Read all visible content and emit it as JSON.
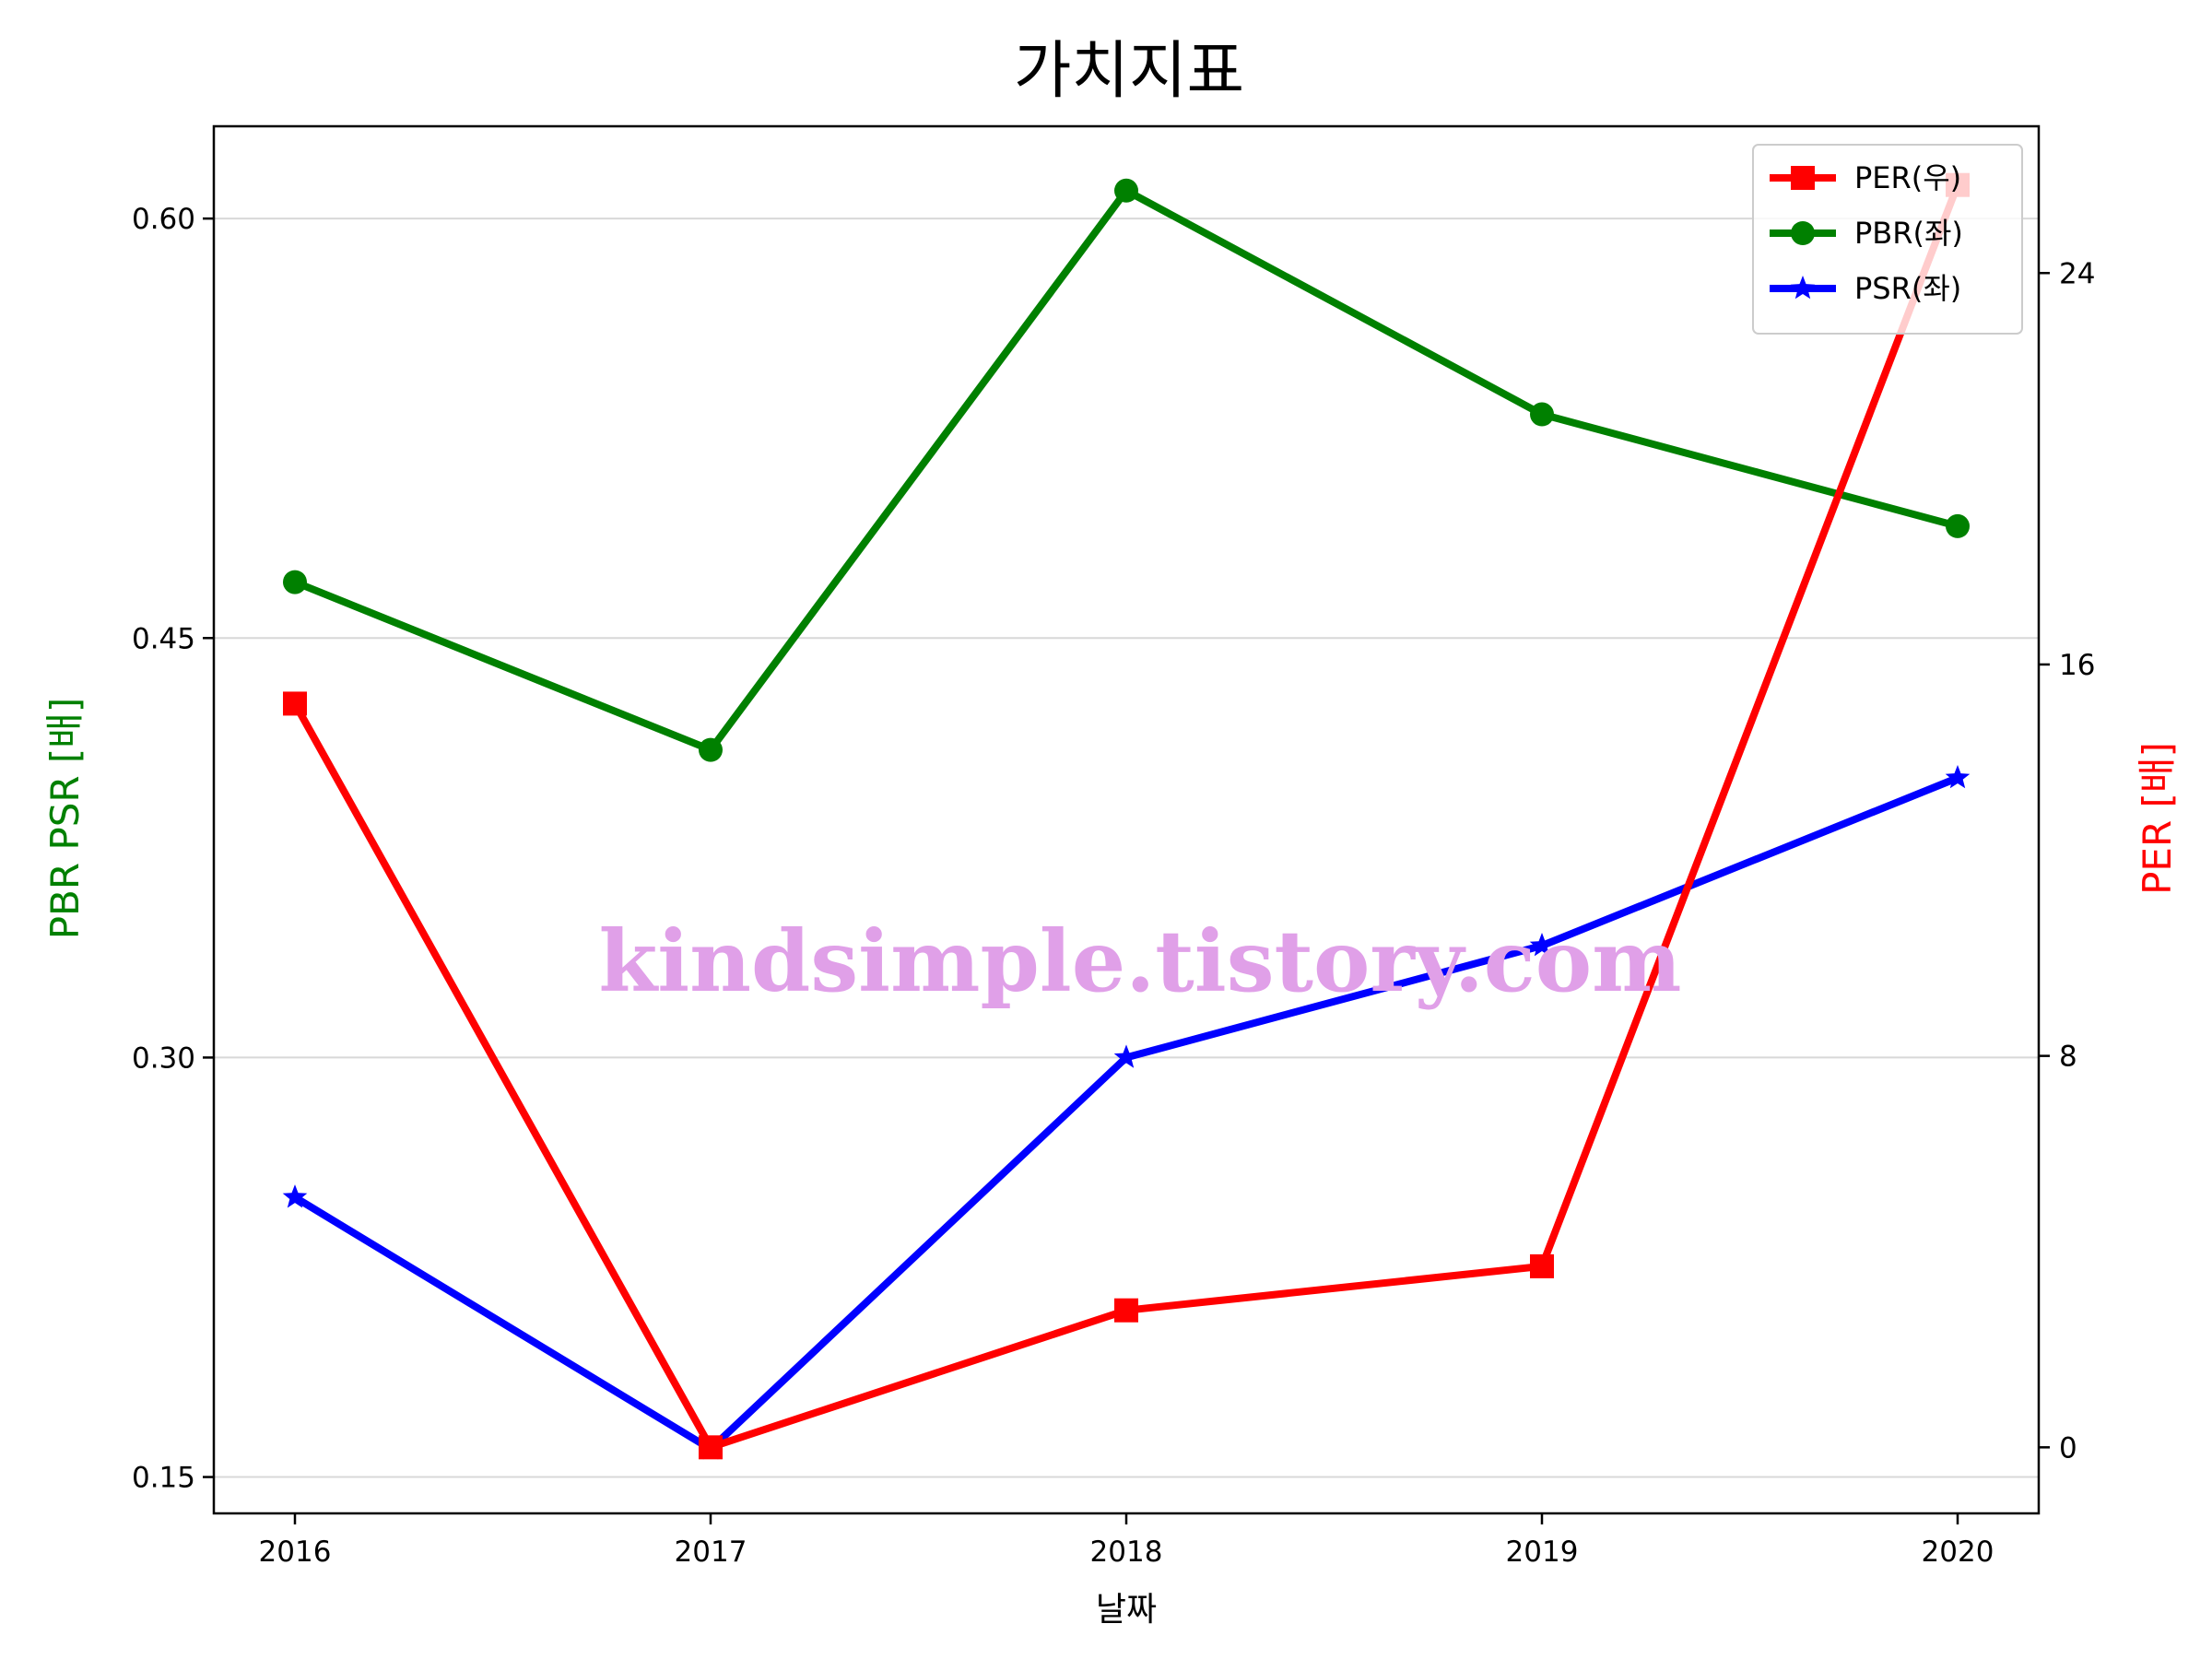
{
  "chart_data": {
    "type": "line",
    "title": "가치지표",
    "xlabel": "날짜",
    "ylabel_left": "PBR PSR [배]",
    "ylabel_right": "PER [배]",
    "categories": [
      "2016",
      "2017",
      "2018",
      "2019",
      "2020"
    ],
    "left_axis": {
      "ylim": [
        0.137,
        0.633
      ],
      "ticks": [
        0.15,
        0.3,
        0.45,
        0.6
      ],
      "tick_labels": [
        "0.15",
        "0.30",
        "0.45",
        "0.60"
      ],
      "color": "#008000"
    },
    "right_axis": {
      "ylim": [
        -1.35,
        27.0
      ],
      "ticks": [
        0,
        8,
        16,
        24
      ],
      "tick_labels": [
        "0",
        "8",
        "16",
        "24"
      ],
      "color": "#ff0000"
    },
    "series": [
      {
        "name": "PER(우)",
        "axis": "right",
        "color": "#ff0000",
        "marker": "square",
        "values": [
          15.2,
          0.0,
          2.8,
          3.7,
          25.8
        ]
      },
      {
        "name": "PBR(좌)",
        "axis": "left",
        "color": "#008000",
        "marker": "circle",
        "values": [
          0.47,
          0.41,
          0.61,
          0.53,
          0.49
        ]
      },
      {
        "name": "PSR(좌)",
        "axis": "left",
        "color": "#0000ff",
        "marker": "star",
        "values": [
          0.25,
          0.16,
          0.3,
          0.34,
          0.4
        ]
      }
    ],
    "legend_position": "top-right",
    "grid": "horizontal",
    "watermark": {
      "text": "kindsimple.tistory.com",
      "color": "#e0a0e8"
    }
  }
}
